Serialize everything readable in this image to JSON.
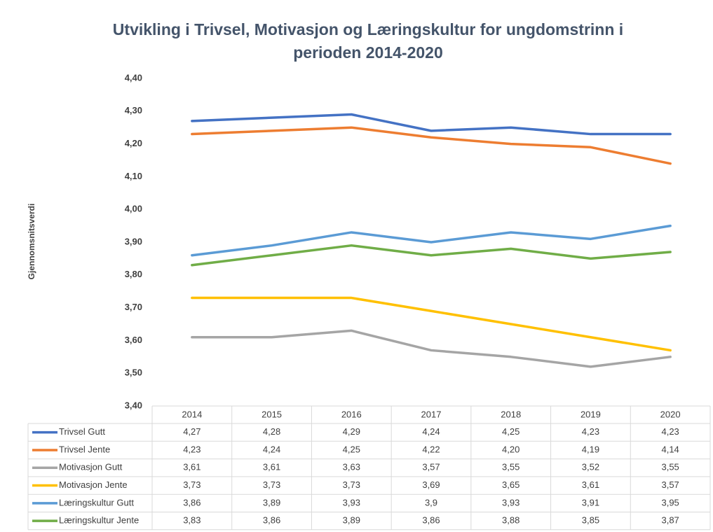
{
  "chart_data": {
    "type": "line",
    "title": [
      "Utvikling i Trivsel, Motivasjon og Læringskultur for ungdomstrinn i",
      "perioden 2014-2020"
    ],
    "y_label": "Gjennomsnitsverdi",
    "categories": [
      "2014",
      "2015",
      "2016",
      "2017",
      "2018",
      "2019",
      "2020"
    ],
    "ylim": [
      3.4,
      4.4
    ],
    "yticks": [
      {
        "value": 3.4,
        "label": "3,40"
      },
      {
        "value": 3.5,
        "label": "3,50"
      },
      {
        "value": 3.6,
        "label": "3,60"
      },
      {
        "value": 3.7,
        "label": "3,70"
      },
      {
        "value": 3.8,
        "label": "3,80"
      },
      {
        "value": 3.9,
        "label": "3,90"
      },
      {
        "value": 4.0,
        "label": "4,00"
      },
      {
        "value": 4.1,
        "label": "4,10"
      },
      {
        "value": 4.2,
        "label": "4,20"
      },
      {
        "value": 4.3,
        "label": "4,30"
      },
      {
        "value": 4.4,
        "label": "4,40"
      }
    ],
    "grid": false,
    "series": [
      {
        "name": "Trivsel Gutt",
        "color": "#4472c4",
        "values": [
          4.27,
          4.28,
          4.29,
          4.24,
          4.25,
          4.23,
          4.23
        ],
        "value_labels": [
          "4,27",
          "4,28",
          "4,29",
          "4,24",
          "4,25",
          "4,23",
          "4,23"
        ]
      },
      {
        "name": "Trivsel Jente",
        "color": "#ed7d31",
        "values": [
          4.23,
          4.24,
          4.25,
          4.22,
          4.2,
          4.19,
          4.14
        ],
        "value_labels": [
          "4,23",
          "4,24",
          "4,25",
          "4,22",
          "4,20",
          "4,19",
          "4,14"
        ]
      },
      {
        "name": "Motivasjon Gutt",
        "color": "#a5a5a5",
        "values": [
          3.61,
          3.61,
          3.63,
          3.57,
          3.55,
          3.52,
          3.55
        ],
        "value_labels": [
          "3,61",
          "3,61",
          "3,63",
          "3,57",
          "3,55",
          "3,52",
          "3,55"
        ]
      },
      {
        "name": "Motivasjon Jente",
        "color": "#ffc000",
        "values": [
          3.73,
          3.73,
          3.73,
          3.69,
          3.65,
          3.61,
          3.57
        ],
        "value_labels": [
          "3,73",
          "3,73",
          "3,73",
          "3,69",
          "3,65",
          "3,61",
          "3,57"
        ]
      },
      {
        "name": "Læringskultur Gutt",
        "color": "#5b9bd5",
        "values": [
          3.86,
          3.89,
          3.93,
          3.9,
          3.93,
          3.91,
          3.95
        ],
        "value_labels": [
          "3,86",
          "3,89",
          "3,93",
          "3,9",
          "3,93",
          "3,91",
          "3,95"
        ]
      },
      {
        "name": "Læringskultur Jente",
        "color": "#70ad47",
        "values": [
          3.83,
          3.86,
          3.89,
          3.86,
          3.88,
          3.85,
          3.87
        ],
        "value_labels": [
          "3,83",
          "3,86",
          "3,89",
          "3,86",
          "3,88",
          "3,85",
          "3,87"
        ]
      }
    ]
  }
}
